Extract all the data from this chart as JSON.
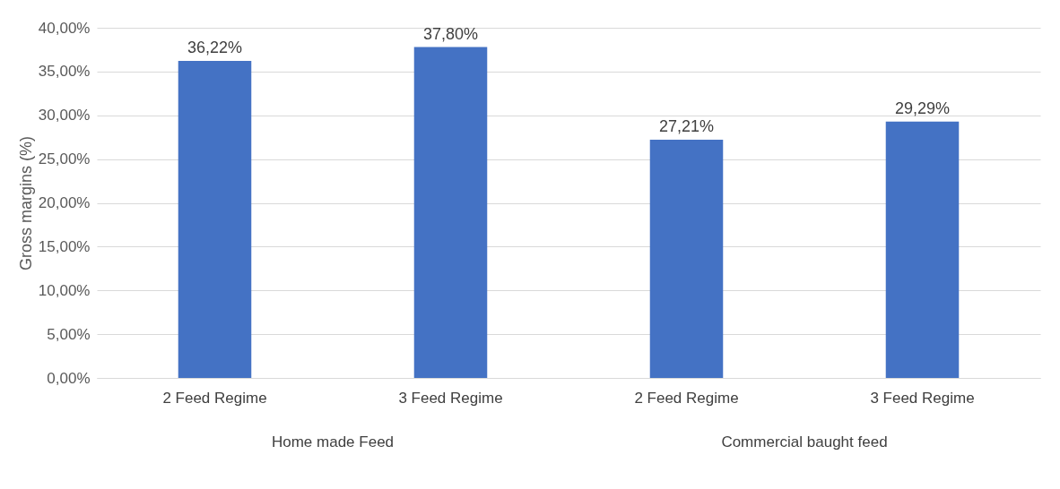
{
  "chart_data": {
    "type": "bar",
    "ylabel": "Gross margins (%)",
    "categories": [
      "2 Feed Regime",
      "3 Feed Regime",
      "2 Feed Regime",
      "3 Feed Regime"
    ],
    "values": [
      36.22,
      37.8,
      27.21,
      29.29
    ],
    "value_labels": [
      "36,22%",
      "37,80%",
      "27,21%",
      "29,29%"
    ],
    "color": "#4472c4",
    "ylim": [
      0,
      40
    ],
    "yticks": [
      {
        "value": 0,
        "label": "0,00%"
      },
      {
        "value": 5,
        "label": "5,00%"
      },
      {
        "value": 10,
        "label": "10,00%"
      },
      {
        "value": 15,
        "label": "15,00%"
      },
      {
        "value": 20,
        "label": "20,00%"
      },
      {
        "value": 25,
        "label": "25,00%"
      },
      {
        "value": 30,
        "label": "30,00%"
      },
      {
        "value": 35,
        "label": "35,00%"
      },
      {
        "value": 40,
        "label": "40,00%"
      }
    ],
    "grid": "y",
    "annotations": [
      "Home made Feed",
      "Commercial baught feed"
    ]
  }
}
